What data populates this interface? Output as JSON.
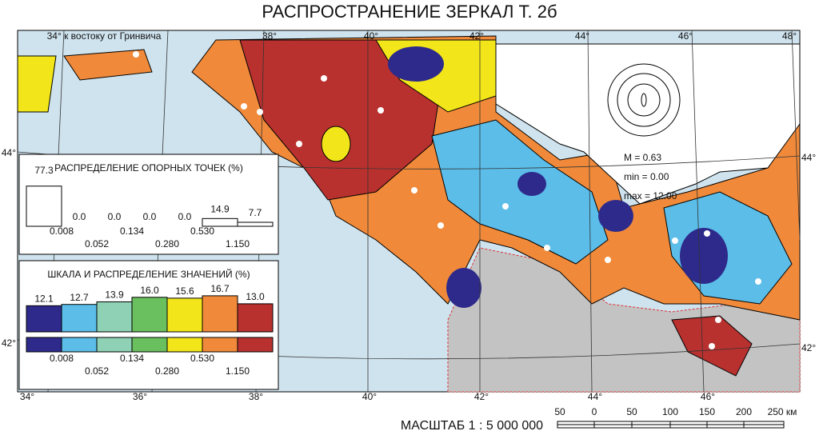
{
  "title": "РАСПРОСТРАНЕНИЕ ЗЕРКАЛ Т. 2б",
  "map": {
    "top_labels": [
      "34° к востоку от Гринвича",
      "38°",
      "40°",
      "42°",
      "44°",
      "46°",
      "48°"
    ],
    "bottom_labels": [
      "34°",
      "36°",
      "38°",
      "40°",
      "42°",
      "44°",
      "46°"
    ],
    "left_labels": [
      "44°",
      "42°"
    ],
    "right_labels": [
      "44°",
      "42°"
    ]
  },
  "stats": {
    "mean": "M = 0.63",
    "min": "min = 0.00",
    "max": "max = 12.00"
  },
  "legend_points": {
    "title": "РАСПРЕДЕЛЕНИЕ ОПОРНЫХ ТОЧЕК (%)",
    "values": [
      77.3,
      {
        "value": 0,
        "label": "0.0"
      },
      {
        "value": 0,
        "label": "0.0"
      },
      {
        "value": 0,
        "label": "0.0"
      },
      {
        "value": 0,
        "label": "0.0"
      },
      14.9,
      7.7
    ],
    "bounds": [
      "0.008",
      "0.052",
      "0.134",
      "0.280",
      "0.530",
      "1.150"
    ]
  },
  "legend_scale": {
    "title": "ШКАЛА И РАСПРЕДЕЛЕНИЕ ЗНАЧЕНИЙ (%)",
    "values": [
      12.1,
      12.7,
      13.9,
      {
        "value": 16,
        "label": "16.0"
      },
      15.6,
      16.7,
      {
        "value": 13,
        "label": "13.0"
      }
    ],
    "colors": [
      "#2e2a8c",
      "#5bbde8",
      "#8fd1b4",
      "#6abf5e",
      "#f2e61a",
      "#f08a3a",
      "#b8312f"
    ],
    "bounds": [
      "0.008",
      "0.052",
      "0.134",
      "0.280",
      "0.530",
      "1.150"
    ]
  },
  "scale": {
    "label": "МАСШТАБ 1 : 5 000 000",
    "ticks": [
      "50",
      "0",
      "50",
      "100",
      "150",
      "200",
      "250 км"
    ]
  }
}
